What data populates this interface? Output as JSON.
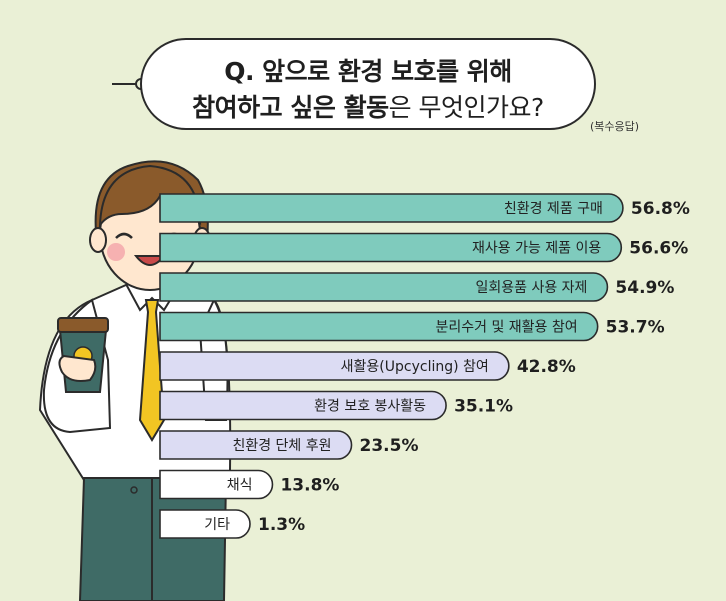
{
  "title": {
    "q_prefix": "Q.",
    "line1_bold": "앞으로 환경 보호를 위해",
    "line2_bold": "참여하고 싶은 활동",
    "line2_rest": "은 무엇인가요?"
  },
  "note": "(복수응답)",
  "colors": {
    "background": "#eaf0d6",
    "bar_top": "#7fcbbd",
    "bar_bottom": "#dcdcf3",
    "bar_last": "#ffffff",
    "outline": "#2b2b2b"
  },
  "chart_data": {
    "type": "bar",
    "orientation": "horizontal",
    "categories": [
      "친환경 제품 구매",
      "재사용 가능 제품 이용",
      "일회용품 사용 자제",
      "분리수거 및 재활용 참여",
      "새활용(Upcycling) 참여",
      "환경 보호 봉사활동",
      "친환경 단체 후원",
      "채식",
      "기타"
    ],
    "values": [
      56.8,
      56.6,
      54.9,
      53.7,
      42.8,
      35.1,
      23.5,
      13.8,
      1.3
    ],
    "value_labels": [
      "56.8%",
      "56.6%",
      "54.9%",
      "53.7%",
      "42.8%",
      "35.1%",
      "23.5%",
      "13.8%",
      "1.3%"
    ],
    "title": "Q. 앞으로 환경 보호를 위해 참여하고 싶은 활동은 무엇인가요?",
    "xlim": [
      0,
      60
    ]
  }
}
